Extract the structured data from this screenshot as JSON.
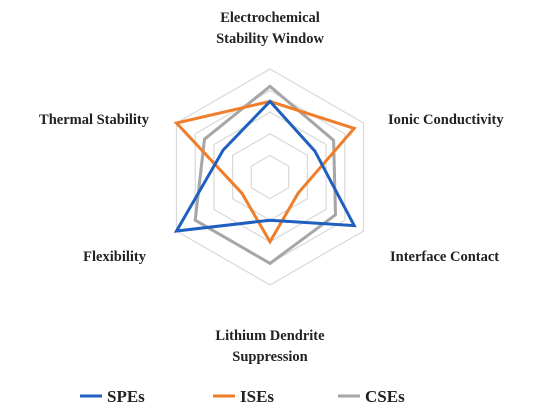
{
  "chart_data": {
    "type": "radar",
    "axes": [
      [
        "Electrochemical",
        "Stability Window"
      ],
      [
        "Ionic Conductivity"
      ],
      [
        "Interface Contact"
      ],
      [
        "Lithium Dendrite",
        "Suppression"
      ],
      [
        "Flexibility"
      ],
      [
        "Thermal Stability"
      ]
    ],
    "rmax": 5,
    "rings": 5,
    "series": [
      {
        "name": "SPEs",
        "color": "#1f5fbf",
        "values": [
          3.5,
          2.4,
          4.5,
          2.0,
          5.0,
          2.5
        ]
      },
      {
        "name": "ISEs",
        "color": "#f07d2a",
        "values": [
          3.5,
          4.5,
          1.5,
          3.0,
          1.5,
          5.0
        ]
      },
      {
        "name": "CSEs",
        "color": "#a6a6a6",
        "values": [
          4.2,
          3.4,
          3.5,
          4.0,
          4.0,
          3.5
        ]
      }
    ],
    "legend": {
      "placement": "bottom"
    },
    "grid": true
  }
}
